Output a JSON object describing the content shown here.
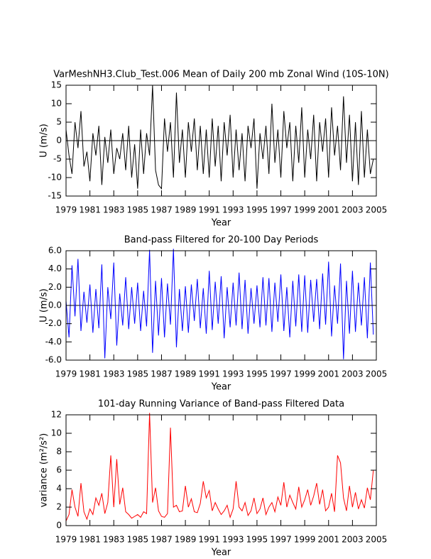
{
  "chart_data": [
    {
      "type": "line",
      "title": "VarMeshNH3.Club_Test.006 Mean of Daily 200 mb Zonal Wind (10S-10N)",
      "xlabel": "Year",
      "ylabel": "U (m/s)",
      "xlim": [
        1979,
        2005
      ],
      "xticks": [
        1979,
        1981,
        1983,
        1985,
        1987,
        1989,
        1991,
        1993,
        1995,
        1997,
        1999,
        2001,
        2003,
        2005
      ],
      "ylim": [
        -15,
        15
      ],
      "yticks": [
        -15,
        -10,
        -5,
        0,
        5,
        10,
        15
      ],
      "reference_line": 0,
      "x": [
        1979,
        1979.25,
        1979.5,
        1979.75,
        1980,
        1980.25,
        1980.5,
        1980.75,
        1981,
        1981.25,
        1981.5,
        1981.75,
        1982,
        1982.25,
        1982.5,
        1982.75,
        1983,
        1983.25,
        1983.5,
        1983.75,
        1984,
        1984.25,
        1984.5,
        1984.75,
        1985,
        1985.25,
        1985.5,
        1985.75,
        1986,
        1986.25,
        1986.5,
        1986.75,
        1987,
        1987.25,
        1987.5,
        1987.75,
        1988,
        1988.25,
        1988.5,
        1988.75,
        1989,
        1989.25,
        1989.5,
        1989.75,
        1990,
        1990.25,
        1990.5,
        1990.75,
        1991,
        1991.25,
        1991.5,
        1991.75,
        1992,
        1992.25,
        1992.5,
        1992.75,
        1993,
        1993.25,
        1993.5,
        1993.75,
        1994,
        1994.25,
        1994.5,
        1994.75,
        1995,
        1995.25,
        1995.5,
        1995.75,
        1996,
        1996.25,
        1996.5,
        1996.75,
        1997,
        1997.25,
        1997.5,
        1997.75,
        1998,
        1998.25,
        1998.5,
        1998.75,
        1999,
        1999.25,
        1999.5,
        1999.75,
        2000,
        2000.25,
        2000.5,
        2000.75,
        2001,
        2001.25,
        2001.5,
        2001.75,
        2002,
        2002.25,
        2002.5,
        2002.75,
        2003,
        2003.25,
        2003.5,
        2003.75,
        2004,
        2004.25,
        2004.5,
        2004.75
      ],
      "series": [
        {
          "color": "#000000",
          "values": [
            3,
            -4,
            -9,
            5,
            -2,
            8,
            -7,
            -3,
            -11,
            2,
            -4,
            4,
            -12,
            1,
            -6,
            3,
            -9,
            -2,
            -5,
            2,
            -8,
            4,
            -10,
            -1,
            -13,
            3,
            -9,
            2,
            -4,
            15,
            -8,
            -12,
            -13,
            6,
            -3,
            5,
            -10,
            13,
            -6,
            3,
            -10,
            5,
            -3,
            6,
            -8,
            4,
            -9,
            3,
            -10,
            6,
            -7,
            4,
            -11,
            5,
            -4,
            7,
            -10,
            3,
            -8,
            2,
            -11,
            4,
            -2,
            6,
            -13,
            2,
            -5,
            4,
            -9,
            10,
            -6,
            3,
            -10,
            8,
            -2,
            5,
            -11,
            4,
            -6,
            9,
            -10,
            3,
            -5,
            7,
            -11,
            5,
            -3,
            6,
            -10,
            9,
            -4,
            4,
            -8,
            12,
            -6,
            7,
            -11,
            5,
            -12,
            8,
            -10,
            3,
            -9,
            -5
          ]
        }
      ]
    },
    {
      "type": "line",
      "title": "Band-pass Filtered for 20-100 Day Periods",
      "xlabel": "Year",
      "ylabel": "U (m/s)",
      "xlim": [
        1979,
        2005
      ],
      "xticks": [
        1979,
        1981,
        1983,
        1985,
        1987,
        1989,
        1991,
        1993,
        1995,
        1997,
        1999,
        2001,
        2003,
        2005
      ],
      "ylim": [
        -6,
        6
      ],
      "yticks": [
        {
          "value": -6,
          "label": "-6.0"
        },
        {
          "value": -4,
          "label": "-4.0"
        },
        {
          "value": -2,
          "label": "-2.0"
        },
        {
          "value": 0,
          "label": "0.0"
        },
        {
          "value": 2,
          "label": "2.0"
        },
        {
          "value": 4,
          "label": "4.0"
        },
        {
          "value": 6,
          "label": "6.0"
        }
      ],
      "reference_line": 0,
      "x": [
        1979,
        1979.25,
        1979.5,
        1979.75,
        1980,
        1980.25,
        1980.5,
        1980.75,
        1981,
        1981.25,
        1981.5,
        1981.75,
        1982,
        1982.25,
        1982.5,
        1982.75,
        1983,
        1983.25,
        1983.5,
        1983.75,
        1984,
        1984.25,
        1984.5,
        1984.75,
        1985,
        1985.25,
        1985.5,
        1985.75,
        1986,
        1986.25,
        1986.5,
        1986.75,
        1987,
        1987.25,
        1987.5,
        1987.75,
        1988,
        1988.25,
        1988.5,
        1988.75,
        1989,
        1989.25,
        1989.5,
        1989.75,
        1990,
        1990.25,
        1990.5,
        1990.75,
        1991,
        1991.25,
        1991.5,
        1991.75,
        1992,
        1992.25,
        1992.5,
        1992.75,
        1993,
        1993.25,
        1993.5,
        1993.75,
        1994,
        1994.25,
        1994.5,
        1994.75,
        1995,
        1995.25,
        1995.5,
        1995.75,
        1996,
        1996.25,
        1996.5,
        1996.75,
        1997,
        1997.25,
        1997.5,
        1997.75,
        1998,
        1998.25,
        1998.5,
        1998.75,
        1999,
        1999.25,
        1999.5,
        1999.75,
        2000,
        2000.25,
        2000.5,
        2000.75,
        2001,
        2001.25,
        2001.5,
        2001.75,
        2002,
        2002.25,
        2002.5,
        2002.75,
        2003,
        2003.25,
        2003.5,
        2003.75,
        2004,
        2004.25,
        2004.5,
        2004.75
      ],
      "series": [
        {
          "color": "#0000ff",
          "values": [
            0.5,
            -3.5,
            4.4,
            -1.2,
            5.1,
            -2.8,
            1.5,
            -1.9,
            2.3,
            -3.0,
            1.8,
            -2.5,
            4.5,
            -5.8,
            2.0,
            -1.5,
            4.7,
            -4.4,
            1.3,
            -2.2,
            3.1,
            -2.6,
            2.0,
            -2.0,
            2.5,
            -2.8,
            1.6,
            -2.3,
            6.1,
            -5.2,
            2.7,
            -3.3,
            3.0,
            -3.5,
            2.4,
            -2.1,
            6.2,
            -4.6,
            1.8,
            -2.8,
            2.1,
            -3.0,
            2.3,
            -1.7,
            2.9,
            -2.5,
            1.9,
            -3.1,
            3.8,
            -2.7,
            2.6,
            -2.0,
            3.2,
            -3.6,
            2.0,
            -2.4,
            2.5,
            -2.2,
            3.6,
            -2.6,
            2.8,
            -3.1,
            1.9,
            -2.0,
            2.2,
            -2.4,
            3.1,
            -2.2,
            3.0,
            -2.9,
            2.5,
            -1.8,
            3.4,
            -2.8,
            2.0,
            -3.5,
            2.7,
            -2.3,
            3.4,
            -2.9,
            3.3,
            -3.0,
            2.8,
            -1.8,
            2.9,
            -2.6,
            3.5,
            -2.1,
            4.8,
            -3.4,
            2.2,
            -2.0,
            4.6,
            -5.9,
            2.7,
            -3.1,
            3.8,
            -2.9,
            2.5,
            -2.2,
            3.1,
            -3.6,
            4.7,
            -3.2
          ]
        }
      ]
    },
    {
      "type": "line",
      "title": "101-day Running Variance of Band-pass Filtered Data",
      "xlabel": "Year",
      "ylabel": "variance (m²/s²)",
      "xlim": [
        1979,
        2005
      ],
      "xticks": [
        1979,
        1981,
        1983,
        1985,
        1987,
        1989,
        1991,
        1993,
        1995,
        1997,
        1999,
        2001,
        2003,
        2005
      ],
      "ylim": [
        0,
        12
      ],
      "yticks": [
        0,
        2,
        4,
        6,
        8,
        10,
        12
      ],
      "x": [
        1979,
        1979.25,
        1979.5,
        1979.75,
        1980,
        1980.25,
        1980.5,
        1980.75,
        1981,
        1981.25,
        1981.5,
        1981.75,
        1982,
        1982.25,
        1982.5,
        1982.75,
        1983,
        1983.25,
        1983.5,
        1983.75,
        1984,
        1984.25,
        1984.5,
        1984.75,
        1985,
        1985.25,
        1985.5,
        1985.75,
        1986,
        1986.25,
        1986.5,
        1986.75,
        1987,
        1987.25,
        1987.5,
        1987.75,
        1988,
        1988.25,
        1988.5,
        1988.75,
        1989,
        1989.25,
        1989.5,
        1989.75,
        1990,
        1990.25,
        1990.5,
        1990.75,
        1991,
        1991.25,
        1991.5,
        1991.75,
        1992,
        1992.25,
        1992.5,
        1992.75,
        1993,
        1993.25,
        1993.5,
        1993.75,
        1994,
        1994.25,
        1994.5,
        1994.75,
        1995,
        1995.25,
        1995.5,
        1995.75,
        1996,
        1996.25,
        1996.5,
        1996.75,
        1997,
        1997.25,
        1997.5,
        1997.75,
        1998,
        1998.25,
        1998.5,
        1998.75,
        1999,
        1999.25,
        1999.5,
        1999.75,
        2000,
        2000.25,
        2000.5,
        2000.75,
        2001,
        2001.25,
        2001.5,
        2001.75,
        2002,
        2002.25,
        2002.5,
        2002.75,
        2003,
        2003.25,
        2003.5,
        2003.75,
        2004,
        2004.25,
        2004.5,
        2004.75
      ],
      "series": [
        {
          "color": "#ff0000",
          "values": [
            0.5,
            1.2,
            3.9,
            2.0,
            1.0,
            4.6,
            1.5,
            0.7,
            1.8,
            1.2,
            3.0,
            2.2,
            3.5,
            1.3,
            2.5,
            7.6,
            2.0,
            7.2,
            2.3,
            4.1,
            1.5,
            1.2,
            0.8,
            1.0,
            1.2,
            0.9,
            1.5,
            1.3,
            12.2,
            2.5,
            4.1,
            1.6,
            1.0,
            0.9,
            1.3,
            10.6,
            2.0,
            2.2,
            1.5,
            1.6,
            4.3,
            2.0,
            2.9,
            1.5,
            1.4,
            2.4,
            4.8,
            3.0,
            3.8,
            1.6,
            2.5,
            1.8,
            1.2,
            1.6,
            2.2,
            0.9,
            1.8,
            4.8,
            2.0,
            1.6,
            2.5,
            1.1,
            1.6,
            3.0,
            1.3,
            1.8,
            3.0,
            1.2,
            2.0,
            2.5,
            1.5,
            3.1,
            2.2,
            4.7,
            2.0,
            3.3,
            2.5,
            1.8,
            4.2,
            2.0,
            2.8,
            3.9,
            2.2,
            3.2,
            4.6,
            2.3,
            3.9,
            1.6,
            2.0,
            3.5,
            1.5,
            7.6,
            6.8,
            3.0,
            1.6,
            4.3,
            2.0,
            3.6,
            1.8,
            2.8,
            1.9,
            4.1,
            2.8,
            6.0
          ]
        }
      ]
    }
  ]
}
